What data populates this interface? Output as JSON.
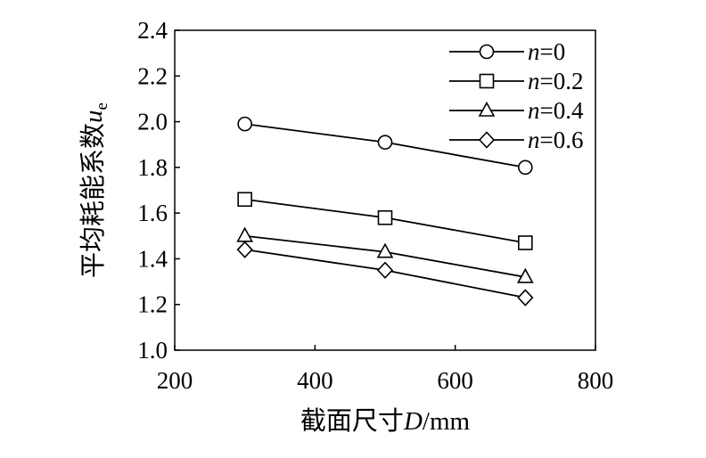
{
  "chart_data": {
    "type": "line",
    "xlabel": {
      "prefix": "截面尺寸",
      "var": "D",
      "unit": "/mm"
    },
    "ylabel": {
      "prefix": "平均耗能系数",
      "var": "u",
      "sub": "e"
    },
    "xlim": [
      200,
      800
    ],
    "ylim": [
      1.0,
      2.4
    ],
    "x_ticks": [
      "200",
      "400",
      "600",
      "800"
    ],
    "y_ticks": [
      "1.0",
      "1.2",
      "1.4",
      "1.6",
      "1.8",
      "2.0",
      "2.2",
      "2.4"
    ],
    "x": [
      300,
      500,
      700
    ],
    "grid": false,
    "legend_position": "top-right",
    "series": [
      {
        "name": "n=0",
        "var": "n",
        "rest": "=0",
        "marker": "circle",
        "values": [
          1.99,
          1.91,
          1.8
        ]
      },
      {
        "name": "n=0.2",
        "var": "n",
        "rest": "=0.2",
        "marker": "square",
        "values": [
          1.66,
          1.58,
          1.47
        ]
      },
      {
        "name": "n=0.4",
        "var": "n",
        "rest": "=0.4",
        "marker": "triangle",
        "values": [
          1.5,
          1.43,
          1.32
        ]
      },
      {
        "name": "n=0.6",
        "var": "n",
        "rest": "=0.6",
        "marker": "diamond",
        "values": [
          1.44,
          1.35,
          1.23
        ]
      }
    ]
  }
}
